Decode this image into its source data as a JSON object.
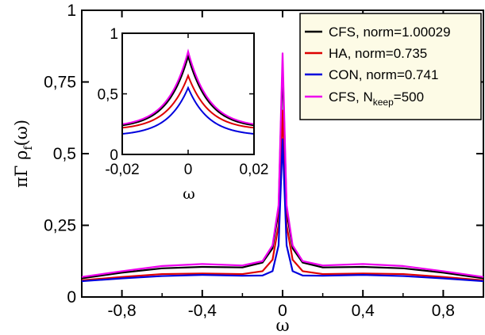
{
  "chart_data": [
    {
      "type": "line",
      "role": "main",
      "xlabel": "ω",
      "ylabel_parts": {
        "pre": "πΓ ρ",
        "sub": "f",
        "post": "(ω)"
      },
      "xlim": [
        -1,
        1
      ],
      "ylim": [
        0,
        1
      ],
      "xticks": [
        -0.8,
        -0.4,
        0,
        0.4,
        0.8
      ],
      "xtick_labels": [
        "-0,8",
        "-0,4",
        "0",
        "0,4",
        "0,8"
      ],
      "yticks": [
        0,
        0.25,
        0.5,
        0.75,
        1
      ],
      "ytick_labels": [
        "0",
        "0,25",
        "0,5",
        "0,75",
        "1"
      ],
      "grid": false,
      "legend_position": "top-right",
      "series": [
        {
          "name": "CFS, norm=1.00029",
          "color": "#000000",
          "values_at_x": {
            "x": [
              -1,
              -0.8,
              -0.6,
              -0.4,
              -0.2,
              -0.1,
              -0.05,
              -0.02,
              0,
              0.02,
              0.05,
              0.1,
              0.2,
              0.4,
              0.6,
              0.8,
              1
            ],
            "y": [
              0.065,
              0.085,
              0.1,
              0.105,
              0.103,
              0.12,
              0.17,
              0.3,
              0.81,
              0.3,
              0.17,
              0.12,
              0.103,
              0.105,
              0.1,
              0.085,
              0.065
            ]
          }
        },
        {
          "name": "HA, norm=0.735",
          "color": "#dd0000",
          "values_at_x": {
            "x": [
              -1,
              -0.8,
              -0.6,
              -0.4,
              -0.2,
              -0.1,
              -0.05,
              -0.02,
              0,
              0.02,
              0.05,
              0.1,
              0.2,
              0.4,
              0.6,
              0.8,
              1
            ],
            "y": [
              0.058,
              0.07,
              0.08,
              0.082,
              0.08,
              0.09,
              0.13,
              0.25,
              0.65,
              0.25,
              0.13,
              0.09,
              0.08,
              0.082,
              0.08,
              0.07,
              0.058
            ]
          }
        },
        {
          "name": "CON, norm=0.741",
          "color": "#0000dd",
          "values_at_x": {
            "x": [
              -1,
              -0.8,
              -0.6,
              -0.4,
              -0.2,
              -0.1,
              -0.05,
              -0.02,
              0,
              0.02,
              0.05,
              0.1,
              0.2,
              0.4,
              0.6,
              0.8,
              1
            ],
            "y": [
              0.055,
              0.065,
              0.073,
              0.077,
              0.074,
              0.075,
              0.09,
              0.18,
              0.55,
              0.18,
              0.09,
              0.075,
              0.074,
              0.077,
              0.073,
              0.065,
              0.055
            ]
          }
        },
        {
          "name_parts": {
            "pre": "CFS, N",
            "sub": "keep",
            "post": "=500"
          },
          "color": "#ee00ee",
          "values_at_x": {
            "x": [
              -1,
              -0.8,
              -0.6,
              -0.4,
              -0.2,
              -0.1,
              -0.05,
              -0.02,
              0,
              0.02,
              0.05,
              0.1,
              0.2,
              0.4,
              0.6,
              0.8,
              1
            ],
            "y": [
              0.07,
              0.09,
              0.108,
              0.115,
              0.11,
              0.125,
              0.18,
              0.32,
              0.85,
              0.32,
              0.18,
              0.125,
              0.11,
              0.115,
              0.108,
              0.09,
              0.07
            ]
          }
        }
      ]
    },
    {
      "type": "line",
      "role": "inset",
      "xlabel": "ω",
      "xlim": [
        -0.02,
        0.02
      ],
      "ylim": [
        0,
        1
      ],
      "xticks": [
        -0.02,
        0,
        0.02
      ],
      "xtick_labels": [
        "-0,02",
        "0",
        "0,02"
      ],
      "yticks": [
        0,
        0.5,
        1
      ],
      "ytick_labels": [
        "0",
        "0,5",
        "1"
      ],
      "series": [
        {
          "color": "#000000",
          "peak": 0.81,
          "edge": 0.24
        },
        {
          "color": "#dd0000",
          "peak": 0.65,
          "edge": 0.22
        },
        {
          "color": "#0000dd",
          "peak": 0.55,
          "edge": 0.17
        },
        {
          "color": "#ee00ee",
          "peak": 0.85,
          "edge": 0.25
        }
      ]
    }
  ]
}
